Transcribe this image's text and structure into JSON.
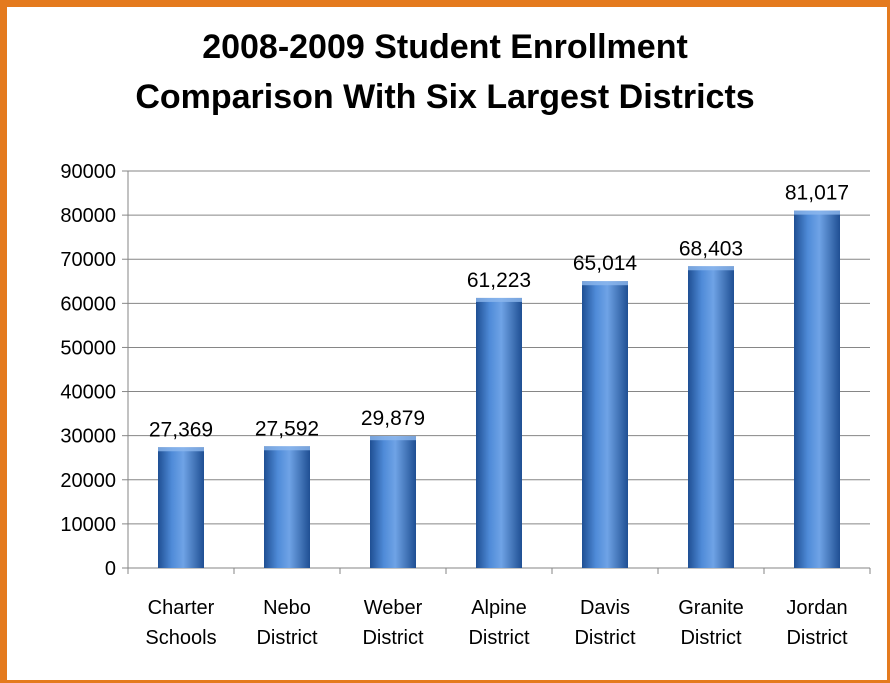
{
  "chart_data": {
    "type": "bar",
    "title_lines": [
      "2008-2009 Student Enrollment",
      "Comparison With Six Largest Districts"
    ],
    "categories": [
      [
        "Charter",
        "Schools"
      ],
      [
        "Nebo",
        "District"
      ],
      [
        "Weber",
        "District"
      ],
      [
        "Alpine",
        "District"
      ],
      [
        "Davis",
        "District"
      ],
      [
        "Granite",
        "District"
      ],
      [
        "Jordan",
        "District"
      ]
    ],
    "values": [
      27369,
      27592,
      29879,
      61223,
      65014,
      68403,
      81017
    ],
    "data_labels": [
      "27,369",
      "27,592",
      "29,879",
      "61,223",
      "65,014",
      "68,403",
      "81,017"
    ],
    "y_ticks": [
      "0",
      "10000",
      "20000",
      "30000",
      "40000",
      "50000",
      "60000",
      "70000",
      "80000",
      "90000"
    ],
    "ylim": [
      0,
      90000
    ],
    "grid": true,
    "legend": false,
    "colors": {
      "bar": "#3A74C4",
      "bar_light": "#6FA3E6",
      "bar_dark": "#1F4F93",
      "frame": "#E47A1E",
      "grid": "#868686"
    }
  }
}
